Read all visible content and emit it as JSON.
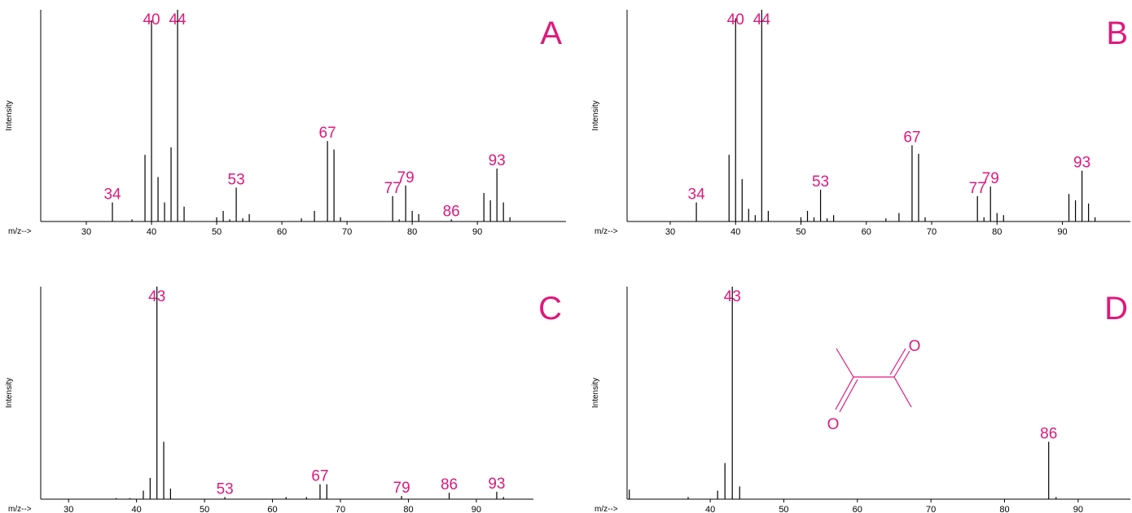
{
  "chart_data": [
    {
      "type": "bar",
      "title": "A",
      "x_label": "m/z-->",
      "y_label": "Intensity",
      "color": "#000000",
      "x": [
        34,
        37,
        39,
        40,
        41,
        42,
        43,
        44,
        45,
        50,
        51,
        52,
        53,
        54,
        55,
        63,
        65,
        67,
        68,
        69,
        77,
        78,
        79,
        80,
        81,
        86,
        91,
        92,
        93,
        94,
        95
      ],
      "values": [
        9,
        1,
        31.5,
        95,
        21,
        9,
        35,
        100,
        7,
        2,
        5,
        1,
        16,
        1.5,
        3.5,
        1.5,
        5,
        38,
        34,
        2,
        12,
        1,
        17,
        5,
        3.5,
        1,
        13.5,
        10,
        25,
        9,
        2
      ],
      "peak_labels": [
        34,
        40,
        44,
        53,
        67,
        77,
        79,
        86,
        93
      ],
      "xlim": [
        23,
        103.6
      ],
      "xticks": [
        30,
        40,
        50,
        60,
        70,
        80,
        90
      ],
      "ylim": [
        0,
        100
      ]
    },
    {
      "type": "bar",
      "title": "B",
      "x_label": "m/z-->",
      "y_label": "Intensity",
      "color": "#000000",
      "x": [
        34,
        39,
        40,
        41,
        42,
        43,
        44,
        45,
        50,
        51,
        52,
        53,
        54,
        55,
        63,
        65,
        67,
        68,
        69,
        77,
        78,
        79,
        80,
        81,
        91,
        92,
        93,
        94,
        95
      ],
      "values": [
        9,
        31.5,
        96,
        20,
        6,
        3,
        100,
        5,
        2,
        5,
        2,
        15,
        1.5,
        3,
        1.5,
        4,
        36,
        32,
        2,
        12,
        2,
        16.5,
        4,
        3,
        13,
        10,
        24,
        8.5,
        2
      ],
      "peak_labels": [
        34,
        40,
        44,
        53,
        67,
        77,
        79,
        93
      ],
      "xlim": [
        23.4,
        100.4
      ],
      "xticks": [
        30,
        40,
        50,
        60,
        70,
        80,
        90
      ],
      "ylim": [
        0,
        100
      ]
    },
    {
      "type": "bar",
      "title": "C",
      "x_label": "m/z-->",
      "y_label": "Intensity",
      "color": "#000000",
      "x": [
        37,
        39,
        41,
        42,
        43,
        44,
        45,
        53,
        62,
        65,
        67,
        68,
        79,
        86,
        93,
        94
      ],
      "values": [
        0.5,
        0.5,
        4,
        10,
        100,
        27,
        5,
        1,
        1,
        1,
        7,
        7,
        1.5,
        3,
        3.5,
        1
      ],
      "peak_labels": [
        43,
        53,
        67,
        79,
        86,
        93
      ],
      "xlim": [
        25.9,
        98.4
      ],
      "xticks": [
        30,
        40,
        50,
        60,
        70,
        80,
        90
      ],
      "ylim": [
        0,
        100
      ]
    },
    {
      "type": "bar",
      "title": "D",
      "x_label": "m/z-->",
      "y_label": "Intensity",
      "color": "#000000",
      "x": [
        29,
        37,
        41,
        42,
        43,
        44,
        86,
        87
      ],
      "values": [
        4.5,
        1,
        4,
        17,
        100,
        6,
        27,
        1
      ],
      "peak_labels": [
        43,
        86
      ],
      "structure_labels": [
        "O",
        "O"
      ],
      "xlim": [
        28.7,
        97.1
      ],
      "xticks": [
        40,
        50,
        60,
        70,
        80,
        90
      ],
      "ylim": [
        0,
        100
      ]
    }
  ]
}
